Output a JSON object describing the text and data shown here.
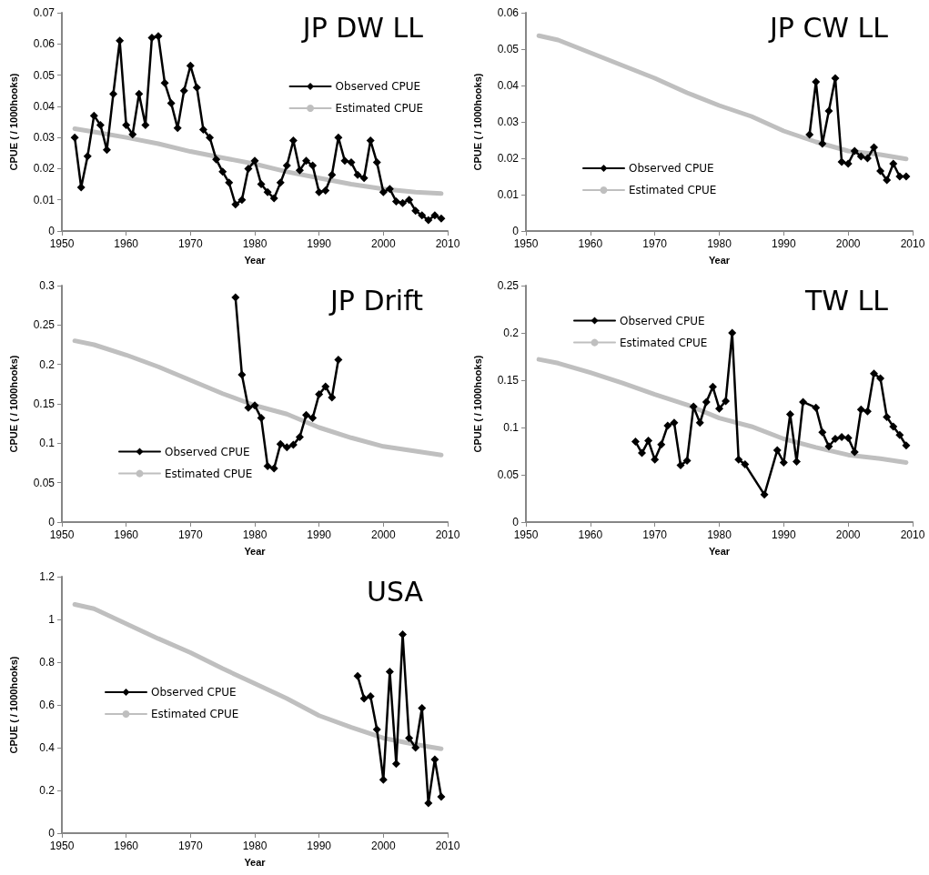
{
  "chart_data": [
    {
      "type": "line",
      "title": "JP DW LL",
      "xlabel": "Year",
      "ylabel": "CPUE ( / 1000hooks)",
      "xlim": [
        1950,
        2010
      ],
      "xticks": [
        1950,
        1960,
        1970,
        1980,
        1990,
        2000,
        2010
      ],
      "ylim": [
        0,
        0.07
      ],
      "yticks": [
        0,
        0.01,
        0.02,
        0.03,
        0.04,
        0.05,
        0.06,
        0.07
      ],
      "grid": false,
      "legend": "top right",
      "series": [
        {
          "name": "Observed CPUE",
          "color": "#000000",
          "marker": "diamond",
          "x": [
            1952,
            1953,
            1954,
            1955,
            1956,
            1957,
            1958,
            1959,
            1960,
            1961,
            1962,
            1963,
            1964,
            1965,
            1966,
            1967,
            1968,
            1969,
            1970,
            1971,
            1972,
            1973,
            1974,
            1975,
            1976,
            1977,
            1978,
            1979,
            1980,
            1981,
            1982,
            1983,
            1984,
            1985,
            1986,
            1987,
            1988,
            1989,
            1990,
            1991,
            1992,
            1993,
            1994,
            1995,
            1996,
            1997,
            1998,
            1999,
            2000,
            2001,
            2002,
            2003,
            2004,
            2005,
            2006,
            2007,
            2008,
            2009
          ],
          "values": [
            0.03,
            0.014,
            0.024,
            0.037,
            0.034,
            0.026,
            0.044,
            0.061,
            0.034,
            0.031,
            0.044,
            0.034,
            0.062,
            0.0625,
            0.0475,
            0.041,
            0.033,
            0.045,
            0.053,
            0.046,
            0.0325,
            0.03,
            0.023,
            0.019,
            0.0155,
            0.0085,
            0.01,
            0.02,
            0.0225,
            0.015,
            0.0125,
            0.0105,
            0.0155,
            0.021,
            0.029,
            0.0195,
            0.0225,
            0.021,
            0.0125,
            0.013,
            0.018,
            0.03,
            0.0225,
            0.022,
            0.018,
            0.017,
            0.029,
            0.022,
            0.0125,
            0.0135,
            0.0095,
            0.009,
            0.01,
            0.0065,
            0.005,
            0.0035,
            0.005,
            0.004
          ]
        },
        {
          "name": "Estimated CPUE",
          "color": "#bfbfbf",
          "marker": "none",
          "x": [
            1952,
            1955,
            1960,
            1965,
            1970,
            1975,
            1980,
            1985,
            1990,
            1995,
            2000,
            2005,
            2009
          ],
          "values": [
            0.0328,
            0.0318,
            0.03,
            0.028,
            0.0255,
            0.0235,
            0.0215,
            0.019,
            0.017,
            0.015,
            0.0135,
            0.0125,
            0.012
          ]
        }
      ]
    },
    {
      "type": "line",
      "title": "JP CW LL",
      "xlabel": "Year",
      "ylabel": "CPUE ( / 1000hooks)",
      "xlim": [
        1950,
        2010
      ],
      "xticks": [
        1950,
        1960,
        1970,
        1980,
        1990,
        2000,
        2010
      ],
      "ylim": [
        0,
        0.06
      ],
      "yticks": [
        0,
        0.01,
        0.02,
        0.03,
        0.04,
        0.05,
        0.06
      ],
      "grid": false,
      "legend": "bottom left",
      "series": [
        {
          "name": "Observed CPUE",
          "color": "#000000",
          "marker": "diamond",
          "x": [
            1994,
            1995,
            1996,
            1997,
            1998,
            1999,
            2000,
            2001,
            2002,
            2003,
            2004,
            2005,
            2006,
            2007,
            2008,
            2009
          ],
          "values": [
            0.0265,
            0.041,
            0.024,
            0.033,
            0.042,
            0.019,
            0.0185,
            0.022,
            0.0205,
            0.02,
            0.023,
            0.0165,
            0.014,
            0.0185,
            0.015,
            0.015
          ]
        },
        {
          "name": "Estimated CPUE",
          "color": "#bfbfbf",
          "marker": "none",
          "x": [
            1952,
            1955,
            1960,
            1965,
            1970,
            1975,
            1980,
            1985,
            1990,
            1995,
            2000,
            2005,
            2009
          ],
          "values": [
            0.0537,
            0.0525,
            0.049,
            0.0455,
            0.042,
            0.038,
            0.0345,
            0.0315,
            0.0275,
            0.0245,
            0.022,
            0.021,
            0.0198
          ]
        }
      ]
    },
    {
      "type": "line",
      "title": "JP Drift",
      "xlabel": "Year",
      "ylabel": "CPUE ( / 1000hooks)",
      "xlim": [
        1950,
        2010
      ],
      "xticks": [
        1950,
        1960,
        1970,
        1980,
        1990,
        2000,
        2010
      ],
      "ylim": [
        0,
        0.3
      ],
      "yticks": [
        0,
        0.05,
        0.1,
        0.15,
        0.2,
        0.25,
        0.3
      ],
      "grid": false,
      "legend": "bottom left",
      "series": [
        {
          "name": "Observed CPUE",
          "color": "#000000",
          "marker": "diamond",
          "x": [
            1977,
            1978,
            1979,
            1980,
            1981,
            1982,
            1983,
            1984,
            1985,
            1986,
            1987,
            1988,
            1989,
            1990,
            1991,
            1992,
            1993
          ],
          "values": [
            0.285,
            0.187,
            0.145,
            0.148,
            0.132,
            0.071,
            0.068,
            0.099,
            0.095,
            0.098,
            0.108,
            0.136,
            0.132,
            0.162,
            0.172,
            0.158,
            0.206
          ]
        },
        {
          "name": "Estimated CPUE",
          "color": "#bfbfbf",
          "marker": "none",
          "x": [
            1952,
            1955,
            1960,
            1965,
            1970,
            1975,
            1980,
            1985,
            1990,
            1995,
            2000,
            2005,
            2009
          ],
          "values": [
            0.23,
            0.225,
            0.212,
            0.197,
            0.18,
            0.163,
            0.148,
            0.137,
            0.12,
            0.107,
            0.096,
            0.09,
            0.085
          ]
        }
      ]
    },
    {
      "type": "line",
      "title": "TW LL",
      "xlabel": "Year",
      "ylabel": "CPUE ( / 1000hooks)",
      "xlim": [
        1950,
        2010
      ],
      "xticks": [
        1950,
        1960,
        1970,
        1980,
        1990,
        2000,
        2010
      ],
      "ylim": [
        0,
        0.25
      ],
      "yticks": [
        0,
        0.05,
        0.1,
        0.15,
        0.2,
        0.25
      ],
      "grid": false,
      "legend": "top left",
      "series": [
        {
          "name": "Observed CPUE",
          "color": "#000000",
          "marker": "diamond",
          "x": [
            1967,
            1968,
            1969,
            1970,
            1971,
            1972,
            1973,
            1974,
            1975,
            1976,
            1977,
            1978,
            1979,
            1980,
            1981,
            1982,
            1983,
            1984,
            1987,
            1989,
            1990,
            1991,
            1992,
            1993,
            1995,
            1996,
            1997,
            1998,
            1999,
            2000,
            2001,
            2002,
            2003,
            2004,
            2005,
            2006,
            2007,
            2008,
            2009
          ],
          "values": [
            0.085,
            0.073,
            0.086,
            0.066,
            0.082,
            0.102,
            0.105,
            0.06,
            0.065,
            0.122,
            0.105,
            0.127,
            0.143,
            0.12,
            0.128,
            0.2,
            0.066,
            0.061,
            0.029,
            0.076,
            0.063,
            0.114,
            0.064,
            0.127,
            0.121,
            0.095,
            0.08,
            0.088,
            0.09,
            0.089,
            0.074,
            0.119,
            0.117,
            0.157,
            0.152,
            0.111,
            0.101,
            0.092,
            0.081
          ]
        },
        {
          "name": "Estimated CPUE",
          "color": "#bfbfbf",
          "marker": "none",
          "x": [
            1952,
            1955,
            1960,
            1965,
            1970,
            1975,
            1980,
            1985,
            1990,
            1995,
            2000,
            2005,
            2009
          ],
          "values": [
            0.172,
            0.168,
            0.158,
            0.147,
            0.135,
            0.124,
            0.11,
            0.101,
            0.088,
            0.079,
            0.071,
            0.067,
            0.063
          ]
        }
      ]
    },
    {
      "type": "line",
      "title": "USA",
      "xlabel": "Year",
      "ylabel": "CPUE ( / 1000hooks)",
      "xlim": [
        1950,
        2010
      ],
      "xticks": [
        1950,
        1960,
        1970,
        1980,
        1990,
        2000,
        2010
      ],
      "ylim": [
        0,
        1.2
      ],
      "yticks": [
        0,
        0.2,
        0.4,
        0.6,
        0.8,
        1,
        1.2
      ],
      "grid": false,
      "legend": "left",
      "series": [
        {
          "name": "Observed CPUE",
          "color": "#000000",
          "marker": "diamond",
          "x": [
            1996,
            1997,
            1998,
            1999,
            2000,
            2001,
            2002,
            2003,
            2004,
            2005,
            2006,
            2007,
            2008,
            2009
          ],
          "values": [
            0.735,
            0.63,
            0.64,
            0.485,
            0.25,
            0.755,
            0.325,
            0.93,
            0.445,
            0.4,
            0.585,
            0.14,
            0.345,
            0.17
          ]
        },
        {
          "name": "Estimated CPUE",
          "color": "#bfbfbf",
          "marker": "none",
          "x": [
            1952,
            1955,
            1960,
            1965,
            1970,
            1975,
            1980,
            1985,
            1990,
            1995,
            2000,
            2005,
            2009
          ],
          "values": [
            1.07,
            1.05,
            0.98,
            0.91,
            0.845,
            0.77,
            0.7,
            0.63,
            0.55,
            0.495,
            0.445,
            0.415,
            0.395
          ]
        }
      ]
    }
  ]
}
